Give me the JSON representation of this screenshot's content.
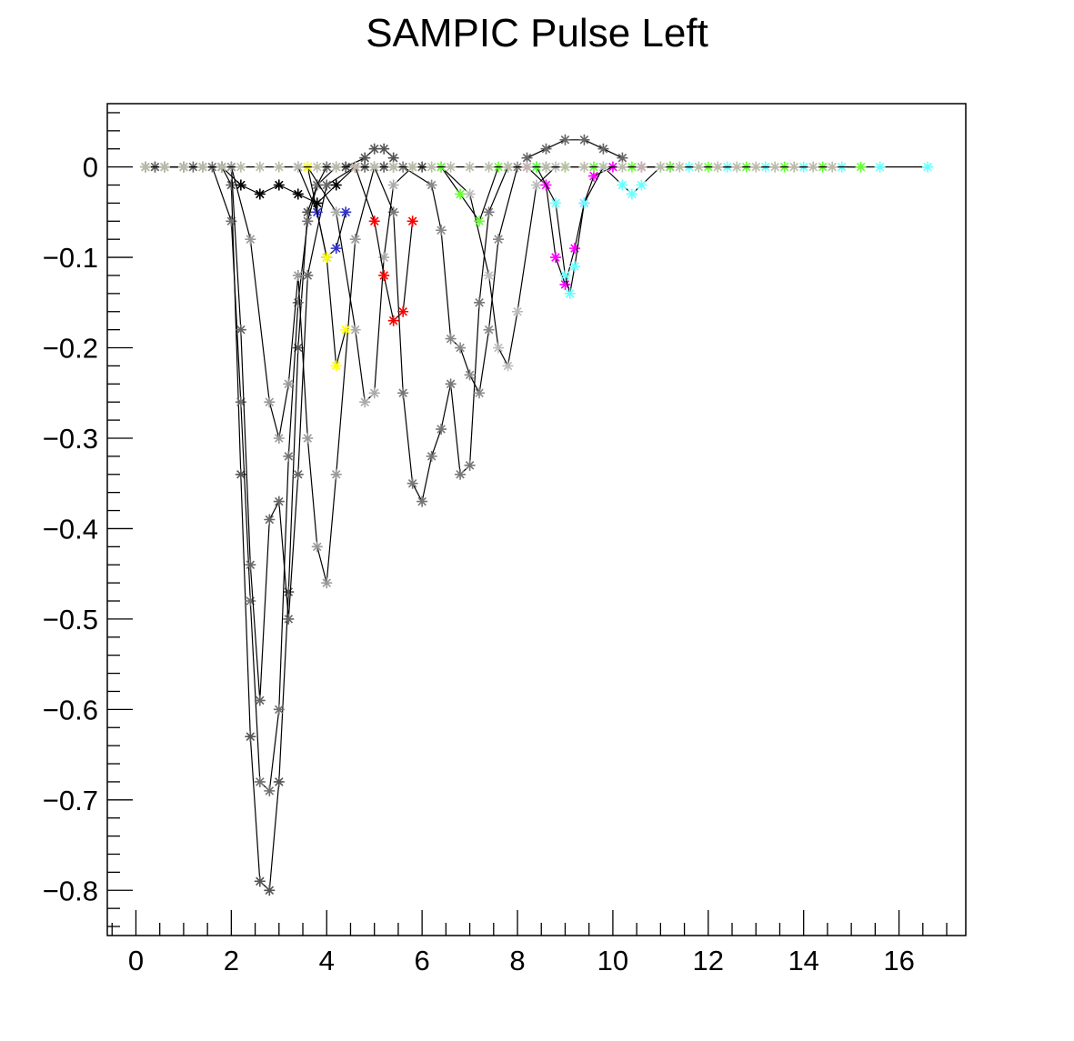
{
  "chart_data": {
    "type": "line",
    "title": "SAMPIC Pulse Left",
    "xlabel": "",
    "ylabel": "",
    "xlim": [
      -0.6,
      17.4
    ],
    "ylim": [
      -0.85,
      0.07
    ],
    "x_ticks": [
      0,
      2,
      4,
      6,
      8,
      10,
      12,
      14,
      16
    ],
    "x_tick_labels": [
      "0",
      "2",
      "4",
      "6",
      "8",
      "10",
      "12",
      "14",
      "16"
    ],
    "y_ticks": [
      0,
      -0.1,
      -0.2,
      -0.3,
      -0.4,
      -0.5,
      -0.6,
      -0.7,
      -0.8
    ],
    "y_tick_labels": [
      "0",
      "−0.1",
      "−0.2",
      "−0.3",
      "−0.4",
      "−0.5",
      "−0.6",
      "−0.7",
      "−0.8"
    ],
    "grid": false,
    "legend": "none",
    "marker": "asterisk",
    "line_color": "#000000",
    "series": [
      {
        "color": "#555555",
        "x": [
          0.2,
          0.6,
          1.0,
          1.4,
          1.8,
          2.0,
          2.2,
          2.4,
          2.6,
          2.8,
          3.0,
          3.2,
          3.4,
          3.6,
          3.8,
          4.0,
          4.4,
          4.8,
          5.2,
          5.6,
          6.0
        ],
        "y": [
          0,
          0,
          0,
          0,
          0,
          -0.02,
          -0.34,
          -0.63,
          -0.79,
          -0.8,
          -0.68,
          -0.47,
          -0.2,
          -0.05,
          -0.02,
          0,
          0,
          0,
          0,
          0,
          0
        ]
      },
      {
        "color": "#707070",
        "x": [
          0.4,
          1.0,
          1.6,
          2.0,
          2.2,
          2.4,
          2.6,
          2.8,
          3.0,
          3.2,
          3.4,
          3.6,
          3.8,
          4.2,
          4.8,
          5.4
        ],
        "y": [
          0,
          0,
          0,
          -0.06,
          -0.26,
          -0.48,
          -0.68,
          -0.69,
          -0.6,
          -0.32,
          -0.15,
          -0.06,
          -0.02,
          0,
          0,
          0
        ]
      },
      {
        "color": "#666666",
        "x": [
          0.4,
          1.2,
          2.0,
          2.2,
          2.4,
          2.6,
          2.8,
          3.0,
          3.2,
          3.4,
          3.6,
          4.0,
          4.6,
          5.2
        ],
        "y": [
          0,
          0,
          0,
          -0.18,
          -0.44,
          -0.59,
          -0.39,
          -0.37,
          -0.5,
          -0.34,
          -0.12,
          -0.02,
          0,
          0
        ]
      },
      {
        "color": "#999999",
        "x": [
          1.0,
          2.0,
          2.4,
          2.8,
          3.0,
          3.2,
          3.4,
          3.6,
          3.8,
          4.0,
          4.2,
          4.6,
          5.0
        ],
        "y": [
          0,
          0,
          -0.08,
          -0.26,
          -0.3,
          -0.24,
          -0.12,
          -0.3,
          -0.42,
          -0.46,
          -0.34,
          -0.08,
          0
        ]
      },
      {
        "color": "#777777",
        "x": [
          4.0,
          5.0,
          5.4,
          5.6,
          5.8,
          6.0,
          6.2,
          6.4,
          6.6,
          6.8,
          7.0,
          7.2,
          7.4,
          7.8,
          8.4
        ],
        "y": [
          0,
          0,
          -0.05,
          -0.25,
          -0.35,
          -0.37,
          -0.32,
          -0.29,
          -0.24,
          -0.34,
          -0.33,
          -0.15,
          -0.05,
          0,
          0
        ]
      },
      {
        "color": "#888888",
        "x": [
          5.6,
          6.2,
          6.4,
          6.6,
          6.8,
          7.0,
          7.2,
          7.4,
          7.6,
          8.0,
          8.6
        ],
        "y": [
          0,
          -0.02,
          -0.07,
          -0.19,
          -0.2,
          -0.23,
          -0.25,
          -0.18,
          -0.08,
          0,
          0
        ]
      },
      {
        "color": "#aaaaaa",
        "x": [
          3.6,
          4.2,
          4.6,
          4.8,
          5.0,
          5.2,
          5.4,
          5.8,
          6.4
        ],
        "y": [
          0,
          -0.05,
          -0.18,
          -0.26,
          -0.25,
          -0.1,
          -0.02,
          0,
          0
        ]
      },
      {
        "color": "#bbbbbb",
        "x": [
          6.4,
          7.0,
          7.4,
          7.6,
          7.8,
          8.0,
          8.4,
          8.8
        ],
        "y": [
          0,
          -0.03,
          -0.12,
          -0.2,
          -0.22,
          -0.16,
          -0.02,
          0
        ]
      },
      {
        "color": "#ff00ff",
        "x": [
          8.2,
          8.6,
          8.8,
          9.0,
          9.2,
          9.4,
          9.6,
          10.0,
          10.6,
          11.2
        ],
        "y": [
          0,
          -0.02,
          -0.1,
          -0.13,
          -0.09,
          -0.04,
          -0.01,
          0,
          0,
          0
        ]
      },
      {
        "color": "#66ffff",
        "x": [
          8.4,
          8.8,
          9.0,
          9.1,
          9.2,
          9.4,
          9.8,
          10.2,
          10.4,
          10.6,
          11.0,
          11.6,
          12.4,
          13.2,
          14.0,
          14.8,
          15.6,
          16.6
        ],
        "y": [
          0,
          -0.04,
          -0.12,
          -0.14,
          -0.11,
          -0.04,
          0,
          -0.02,
          -0.03,
          -0.02,
          0,
          0,
          0,
          0,
          0,
          0,
          0,
          0
        ]
      },
      {
        "color": "#ff0000",
        "x": [
          4.6,
          5.0,
          5.2,
          5.4,
          5.6,
          5.8
        ],
        "y": [
          0,
          -0.06,
          -0.12,
          -0.17,
          -0.16,
          -0.06
        ]
      },
      {
        "color": "#3333cc",
        "x": [
          3.4,
          3.8,
          4.0,
          4.2,
          4.4
        ],
        "y": [
          0,
          -0.05,
          -0.1,
          -0.09,
          -0.05
        ]
      },
      {
        "color": "#66ff33",
        "x": [
          5.8,
          6.4,
          6.8,
          7.2,
          7.6,
          8.4,
          9.0,
          9.6,
          10.4,
          11.2,
          12.0,
          12.8,
          13.6,
          14.4,
          15.2
        ],
        "y": [
          0,
          0,
          -0.03,
          -0.06,
          0,
          0,
          0,
          0,
          0,
          0,
          0,
          0,
          0,
          0,
          0
        ]
      },
      {
        "color": "#ffff00",
        "x": [
          3.6,
          4.0,
          4.2,
          4.4
        ],
        "y": [
          0,
          -0.1,
          -0.22,
          -0.18
        ]
      },
      {
        "color": "#666666",
        "x": [
          8.2,
          8.6,
          9.0,
          9.4,
          9.8,
          10.2
        ],
        "y": [
          0.01,
          0.02,
          0.03,
          0.03,
          0.02,
          0.01
        ]
      },
      {
        "color": "#555555",
        "x": [
          4.4,
          4.8,
          5.0,
          5.2,
          5.4
        ],
        "y": [
          0,
          0.01,
          0.02,
          0.02,
          0.01
        ]
      },
      {
        "color": "#000000",
        "x": [
          1.8,
          2.2,
          2.6,
          3.0,
          3.4,
          3.8,
          4.2,
          4.6
        ],
        "y": [
          0,
          -0.02,
          -0.03,
          -0.02,
          -0.03,
          -0.04,
          -0.02,
          0
        ]
      },
      {
        "color": "#bbbbaa",
        "x": [
          0.2,
          0.6,
          1.0,
          1.4,
          1.8,
          2.2,
          2.6,
          3.0,
          3.4,
          3.8,
          4.2,
          4.6,
          5.0,
          5.4,
          5.8,
          6.2,
          6.6,
          7.0,
          7.4,
          7.8,
          8.2,
          8.6,
          9.0,
          9.4,
          9.8,
          10.2,
          10.6,
          11.0,
          11.4,
          11.8,
          12.2,
          12.6,
          13.0,
          13.4,
          13.8,
          14.2,
          14.6
        ],
        "y": [
          0,
          0,
          0,
          0,
          0,
          0,
          0,
          0,
          0,
          0,
          0,
          0,
          0,
          0,
          0,
          0,
          0,
          0,
          0,
          0,
          0,
          0,
          0,
          0,
          0,
          0,
          0,
          0,
          0,
          0,
          0,
          0,
          0,
          0,
          0,
          0,
          0
        ]
      }
    ]
  }
}
